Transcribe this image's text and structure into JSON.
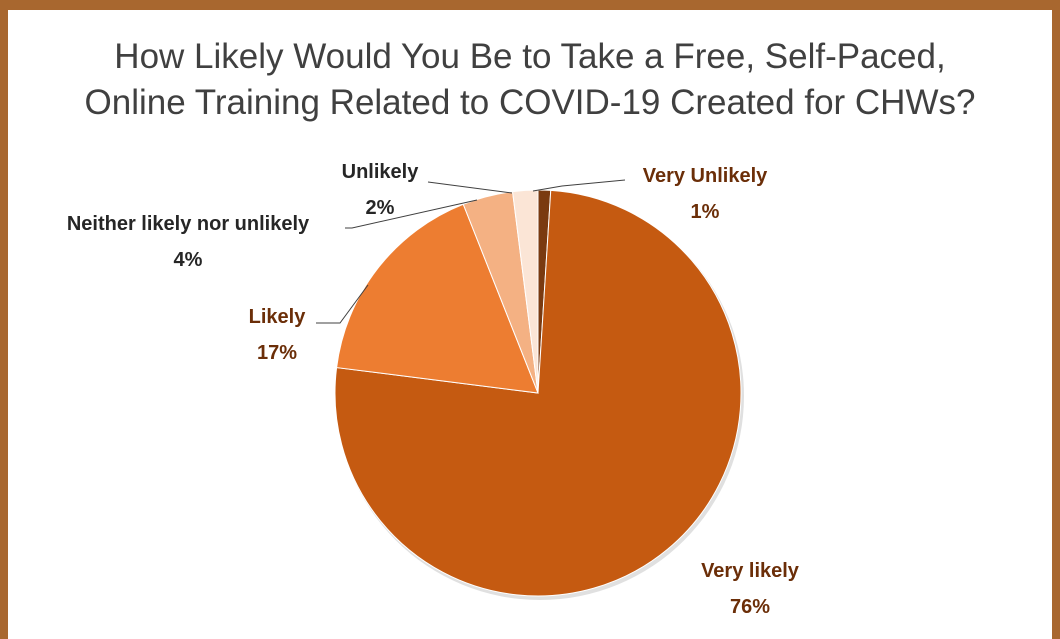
{
  "chart_data": {
    "type": "pie",
    "title": [
      "How Likely Would You Be to Take a Free, Self-Paced,",
      "Online Training Related to COVID-19 Created for CHWs?"
    ],
    "slices": [
      {
        "label": "Very Unlikely",
        "value": 1,
        "value_label": "1%",
        "color": "#7a3a10",
        "label_color": "#6b2e08"
      },
      {
        "label": "Very likely",
        "value": 76,
        "value_label": "76%",
        "color": "#c55a11",
        "label_color": "#6b2e08"
      },
      {
        "label": "Likely",
        "value": 17,
        "value_label": "17%",
        "color": "#ed7d31",
        "label_color": "#6b2e08"
      },
      {
        "label": "Neither likely nor unlikely",
        "value": 4,
        "value_label": "4%",
        "color": "#f4b183",
        "label_color": "#262626"
      },
      {
        "label": "Unlikely",
        "value": 2,
        "value_label": "2%",
        "color": "#fbe5d6",
        "label_color": "#262626"
      }
    ],
    "frame_color": "#a8672f"
  }
}
